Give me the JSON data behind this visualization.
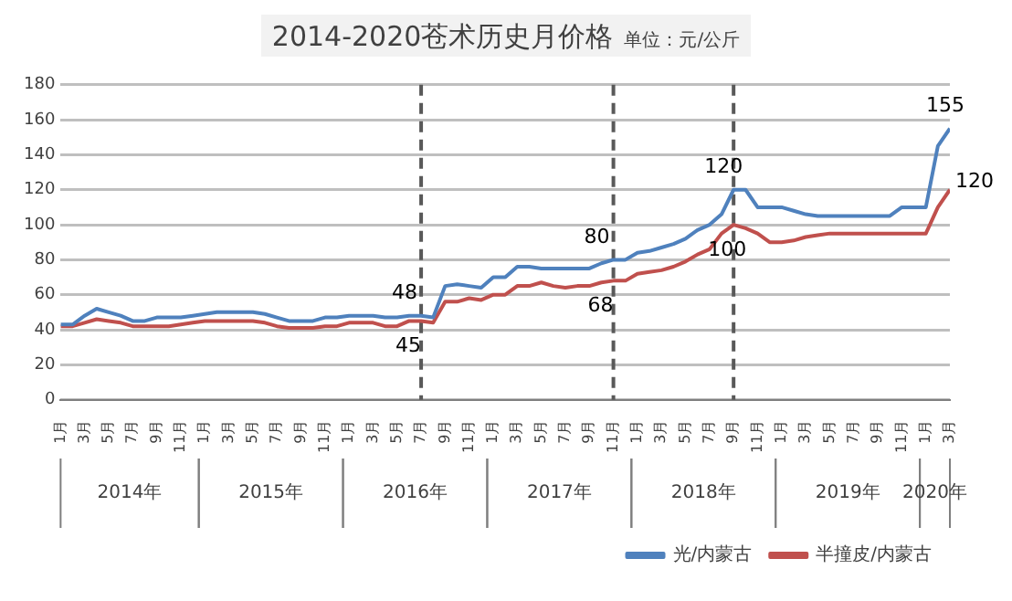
{
  "chart_data": {
    "type": "line",
    "title": "2014-2020苍术历史月价格",
    "subtitle": "单位：元/公斤",
    "x": [
      "2014-01",
      "2014-02",
      "2014-03",
      "2014-04",
      "2014-05",
      "2014-06",
      "2014-07",
      "2014-08",
      "2014-09",
      "2014-10",
      "2014-11",
      "2014-12",
      "2015-01",
      "2015-02",
      "2015-03",
      "2015-04",
      "2015-05",
      "2015-06",
      "2015-07",
      "2015-08",
      "2015-09",
      "2015-10",
      "2015-11",
      "2015-12",
      "2016-01",
      "2016-02",
      "2016-03",
      "2016-04",
      "2016-05",
      "2016-06",
      "2016-07",
      "2016-08",
      "2016-09",
      "2016-10",
      "2016-11",
      "2016-12",
      "2017-01",
      "2017-02",
      "2017-03",
      "2017-04",
      "2017-05",
      "2017-06",
      "2017-07",
      "2017-08",
      "2017-09",
      "2017-10",
      "2017-11",
      "2017-12",
      "2018-01",
      "2018-02",
      "2018-03",
      "2018-04",
      "2018-05",
      "2018-06",
      "2018-07",
      "2018-08",
      "2018-09",
      "2018-10",
      "2018-11",
      "2018-12",
      "2019-01",
      "2019-02",
      "2019-03",
      "2019-04",
      "2019-05",
      "2019-06",
      "2019-07",
      "2019-08",
      "2019-09",
      "2019-10",
      "2019-11",
      "2019-12",
      "2020-01",
      "2020-02",
      "2020-03"
    ],
    "series": [
      {
        "name": "光/内蒙古",
        "color": "#4f81bd",
        "values": [
          43,
          43,
          48,
          52,
          50,
          48,
          45,
          45,
          47,
          47,
          47,
          48,
          49,
          50,
          50,
          50,
          50,
          49,
          47,
          45,
          45,
          45,
          47,
          47,
          48,
          48,
          48,
          47,
          47,
          48,
          48,
          47,
          65,
          66,
          65,
          64,
          70,
          70,
          76,
          76,
          75,
          75,
          75,
          75,
          75,
          78,
          80,
          80,
          84,
          85,
          87,
          89,
          92,
          97,
          100,
          106,
          120,
          120,
          110,
          110,
          110,
          108,
          106,
          105,
          105,
          105,
          105,
          105,
          105,
          105,
          110,
          110,
          110,
          145,
          155
        ],
        "value_labels": [
          null,
          null,
          null,
          null,
          null,
          null,
          null,
          null,
          null,
          null,
          null,
          null,
          null,
          null,
          null,
          null,
          null,
          null,
          null,
          null,
          null,
          null,
          null,
          null,
          null,
          null,
          null,
          null,
          null,
          null,
          "48",
          null,
          null,
          null,
          null,
          null,
          null,
          null,
          null,
          null,
          null,
          null,
          null,
          null,
          null,
          null,
          "80",
          null,
          null,
          null,
          null,
          null,
          null,
          null,
          null,
          null,
          "120",
          null,
          null,
          null,
          null,
          null,
          null,
          null,
          null,
          null,
          null,
          null,
          null,
          null,
          null,
          null,
          null,
          null,
          "155"
        ]
      },
      {
        "name": "半撞皮/内蒙古",
        "color": "#c0504d",
        "values": [
          42,
          42,
          44,
          46,
          45,
          44,
          42,
          42,
          42,
          42,
          43,
          44,
          45,
          45,
          45,
          45,
          45,
          44,
          42,
          41,
          41,
          41,
          42,
          42,
          44,
          44,
          44,
          42,
          42,
          45,
          45,
          44,
          56,
          56,
          58,
          57,
          60,
          60,
          65,
          65,
          67,
          65,
          64,
          65,
          65,
          67,
          68,
          68,
          72,
          73,
          74,
          76,
          79,
          83,
          86,
          95,
          100,
          98,
          95,
          90,
          90,
          91,
          93,
          94,
          95,
          95,
          95,
          95,
          95,
          95,
          95,
          95,
          95,
          110,
          120
        ],
        "value_labels": [
          null,
          null,
          null,
          null,
          null,
          null,
          null,
          null,
          null,
          null,
          null,
          null,
          null,
          null,
          null,
          null,
          null,
          null,
          null,
          null,
          null,
          null,
          null,
          null,
          null,
          null,
          null,
          null,
          null,
          null,
          "45",
          null,
          null,
          null,
          null,
          null,
          null,
          null,
          null,
          null,
          null,
          null,
          null,
          null,
          null,
          null,
          "68",
          null,
          null,
          null,
          null,
          null,
          null,
          null,
          null,
          null,
          "100",
          null,
          null,
          null,
          null,
          null,
          null,
          null,
          null,
          null,
          null,
          null,
          null,
          null,
          null,
          null,
          null,
          null,
          "120"
        ]
      }
    ],
    "xlim": [
      "2014-01",
      "2020-03"
    ],
    "xticks": [
      {
        "value": "2014-01",
        "label": "1月"
      },
      {
        "value": "2014-03",
        "label": "3月"
      },
      {
        "value": "2014-05",
        "label": "5月"
      },
      {
        "value": "2014-07",
        "label": "7月"
      },
      {
        "value": "2014-09",
        "label": "9月"
      },
      {
        "value": "2014-11",
        "label": "11月"
      },
      {
        "value": "2015-01",
        "label": "1月"
      },
      {
        "value": "2015-03",
        "label": "3月"
      },
      {
        "value": "2015-05",
        "label": "5月"
      },
      {
        "value": "2015-07",
        "label": "7月"
      },
      {
        "value": "2015-09",
        "label": "9月"
      },
      {
        "value": "2015-11",
        "label": "11月"
      },
      {
        "value": "2016-01",
        "label": "1月"
      },
      {
        "value": "2016-03",
        "label": "3月"
      },
      {
        "value": "2016-05",
        "label": "5月"
      },
      {
        "value": "2016-07",
        "label": "7月"
      },
      {
        "value": "2016-09",
        "label": "9月"
      },
      {
        "value": "2016-11",
        "label": "11月"
      },
      {
        "value": "2017-01",
        "label": "1月"
      },
      {
        "value": "2017-03",
        "label": "3月"
      },
      {
        "value": "2017-05",
        "label": "5月"
      },
      {
        "value": "2017-07",
        "label": "7月"
      },
      {
        "value": "2017-09",
        "label": "9月"
      },
      {
        "value": "2017-11",
        "label": "11月"
      },
      {
        "value": "2018-01",
        "label": "1月"
      },
      {
        "value": "2018-03",
        "label": "3月"
      },
      {
        "value": "2018-05",
        "label": "5月"
      },
      {
        "value": "2018-07",
        "label": "7月"
      },
      {
        "value": "2018-09",
        "label": "9月"
      },
      {
        "value": "2018-11",
        "label": "11月"
      },
      {
        "value": "2019-01",
        "label": "1月"
      },
      {
        "value": "2019-03",
        "label": "3月"
      },
      {
        "value": "2019-05",
        "label": "5月"
      },
      {
        "value": "2019-07",
        "label": "7月"
      },
      {
        "value": "2019-09",
        "label": "9月"
      },
      {
        "value": "2019-11",
        "label": "11月"
      },
      {
        "value": "2020-01",
        "label": "1月"
      },
      {
        "value": "2020-03",
        "label": "3月"
      }
    ],
    "ylim": [
      0,
      180
    ],
    "yticks": [
      0,
      20,
      40,
      60,
      80,
      100,
      120,
      140,
      160,
      180
    ],
    "grid": "y",
    "legend": "bottom",
    "marker": "none",
    "line_style": "solid",
    "ref_lines": [
      {
        "axis": "x",
        "value": "2016-07",
        "color": "#595959",
        "line_style": "dashed"
      },
      {
        "axis": "x",
        "value": "2017-11",
        "color": "#595959",
        "line_style": "dashed"
      },
      {
        "axis": "x",
        "value": "2018-09",
        "color": "#595959",
        "line_style": "dashed"
      }
    ],
    "annotations": [
      "2014年",
      "2015年",
      "2016年",
      "2017年",
      "2018年",
      "2019年",
      "2020年"
    ]
  }
}
